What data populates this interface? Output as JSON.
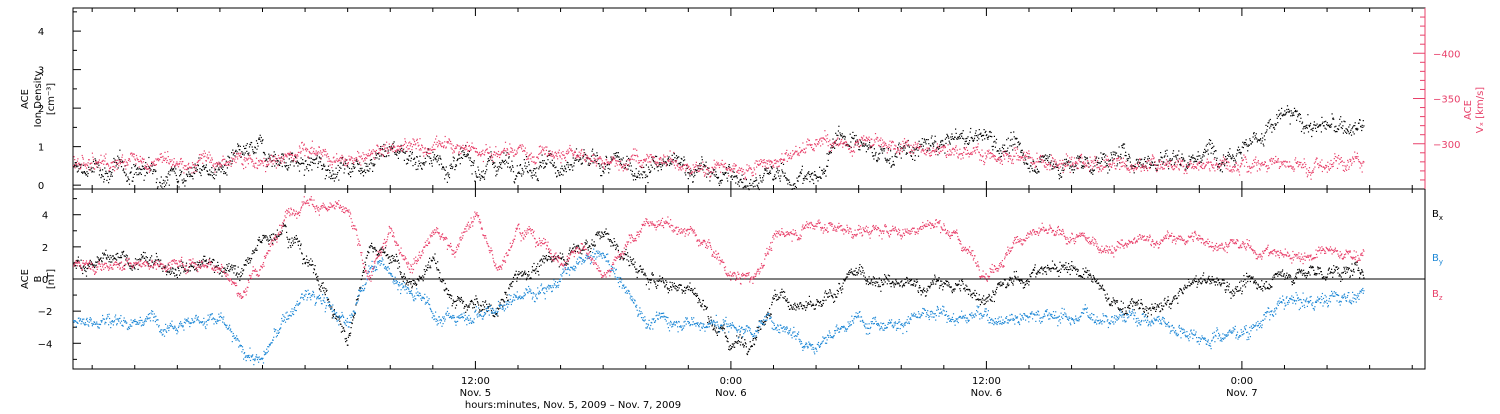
{
  "colors": {
    "black": "#000000",
    "pink": "#e8406a",
    "blue": "#1e88d6",
    "axis": "#000000"
  },
  "chart_data": [
    {
      "type": "scatter",
      "panel": "top",
      "left_axis": {
        "label_lines": [
          "ACE",
          "Ion Density",
          "[cm⁻³]"
        ],
        "ylim": [
          -0.1,
          4.6
        ],
        "ticks": [
          0,
          1,
          2,
          3,
          4
        ],
        "tick_labels": [
          "0",
          "1",
          "2",
          "3",
          "4"
        ],
        "color": "#000000"
      },
      "right_axis": {
        "label_lines": [
          "ACE",
          "Vₓ [km/s]"
        ],
        "ylim": [
          -250,
          -450
        ],
        "ticks": [
          -300,
          -350,
          -400
        ],
        "tick_labels": [
          "−300",
          "−350",
          "−400"
        ],
        "color": "#e8406a"
      },
      "series": [
        {
          "axis": "left",
          "color": "#000000",
          "knots_hours": [
            0,
            2,
            4,
            6,
            8,
            10,
            12,
            14,
            16,
            18,
            20,
            22,
            23.6,
            24,
            26,
            28.2,
            29,
            30,
            32,
            34,
            36,
            38,
            40,
            42,
            44,
            46,
            48,
            48.9,
            49.5,
            50,
            51,
            52,
            54
          ],
          "knots_values": [
            0.4,
            0.9,
            0.5,
            0.5,
            1.0,
            0.6,
            0.5,
            0.7,
            0.5,
            0.5,
            0.5,
            0.5,
            0.2,
            0.2,
            0.2,
            0.2,
            1.5,
            0.9,
            0.8,
            1.1,
            1.3,
            0.7,
            0.5,
            0.7,
            0.7,
            0.8,
            1.1,
            1.3,
            1.6,
            1.8,
            1.6,
            1.5,
            1.5
          ],
          "scatter": 0.35
        },
        {
          "axis": "right",
          "color": "#e8406a",
          "knots_hours": [
            0,
            2,
            4,
            6,
            8,
            10,
            12,
            14,
            16,
            18,
            20,
            22,
            24,
            26,
            27,
            28.3,
            29,
            30,
            32,
            34,
            36,
            38,
            40,
            42,
            44,
            46,
            48,
            50,
            52,
            53.7
          ],
          "knots_values": [
            -280,
            -280,
            -290,
            -285,
            -295,
            -297,
            -292,
            -290,
            -285,
            -282,
            -278,
            -278,
            -272,
            -275,
            -290,
            -305,
            -298,
            -300,
            -297,
            -290,
            -286,
            -284,
            -279,
            -277,
            -274,
            -276,
            -275,
            -276,
            -276,
            -276
          ],
          "scatter": 12
        }
      ]
    },
    {
      "type": "scatter",
      "panel": "bottom",
      "left_axis": {
        "label_lines": [
          "ACE",
          "B",
          "[nT]"
        ],
        "ylim": [
          -5.6,
          5.6
        ],
        "ticks": [
          -4,
          -2,
          0,
          2,
          4
        ],
        "tick_labels": [
          "−4",
          "−2",
          "0",
          "2",
          "4"
        ],
        "color": "#000000"
      },
      "zero_line": true,
      "series": [
        {
          "name": "Bx",
          "label_main": "B",
          "label_sub": "x",
          "color": "#000000",
          "knots_hours": [
            0,
            1,
            2,
            3,
            4,
            5,
            6,
            7,
            8,
            9,
            10,
            11,
            12,
            13,
            14,
            15,
            16,
            17,
            18,
            20,
            22,
            24,
            25,
            26,
            27,
            28,
            30,
            32,
            34,
            36,
            38,
            40,
            42,
            44,
            46,
            48,
            50,
            52,
            54
          ],
          "knots_values": [
            1.0,
            0.3,
            2.5,
            3.5,
            1.5,
            -1.0,
            -4.0,
            2.5,
            1.5,
            -0.5,
            1.0,
            -1.5,
            -1.5,
            -2.0,
            0.3,
            0.8,
            1.5,
            2.0,
            3.0,
            0.0,
            -0.5,
            -4.0,
            -3.5,
            -1.0,
            -1.5,
            -2.0,
            0.5,
            -0.5,
            -0.3,
            -1.0,
            0.3,
            1.0,
            -1.5,
            -2.0,
            0.0,
            -0.5,
            0.3,
            0.5,
            0.4
          ],
          "scatter": 0.6
        },
        {
          "name": "By",
          "label_main": "B",
          "label_sub": "y",
          "color": "#1e88d6",
          "knots_hours": [
            0,
            1,
            2,
            3,
            4,
            5,
            6,
            7,
            8,
            9,
            10,
            11,
            12,
            13,
            14,
            15,
            16,
            17,
            18,
            20,
            22,
            24,
            25,
            26,
            28,
            30,
            32,
            34,
            36,
            38,
            40,
            42,
            44,
            46,
            48,
            50,
            52,
            54
          ],
          "knots_values": [
            -2.5,
            -4.5,
            -5.0,
            -2.5,
            -1.0,
            -1.5,
            -3.0,
            1.0,
            0.5,
            -1.0,
            -2.0,
            -2.5,
            -2.0,
            -2.0,
            -1.0,
            -0.5,
            0.0,
            1.0,
            1.5,
            -2.5,
            -2.5,
            -3.0,
            -3.0,
            -2.5,
            -4.0,
            -2.5,
            -2.5,
            -2.3,
            -2.3,
            -2.2,
            -2.3,
            -2.2,
            -2.5,
            -3.5,
            -3.3,
            -1.5,
            -1.2,
            -0.8
          ],
          "scatter": 0.6
        },
        {
          "name": "Bz",
          "label_main": "B",
          "label_sub": "z",
          "color": "#e8406a",
          "knots_hours": [
            0,
            1,
            2,
            3,
            4,
            5,
            6,
            7,
            8,
            9,
            10,
            11,
            12,
            13,
            14,
            15,
            16,
            17,
            18,
            20,
            22,
            23,
            24,
            25,
            26,
            28,
            30,
            32,
            34,
            36,
            38,
            40,
            42,
            44,
            46,
            48,
            50,
            52,
            54
          ],
          "knots_values": [
            1.0,
            -1.0,
            1.0,
            4.0,
            5.0,
            4.5,
            4.0,
            0.0,
            3.0,
            1.0,
            3.0,
            2.0,
            4.0,
            0.5,
            3.5,
            2.5,
            1.0,
            2.0,
            0.5,
            3.5,
            3.0,
            2.0,
            0.2,
            0.0,
            2.5,
            3.5,
            3.0,
            3.0,
            3.5,
            0.5,
            3.0,
            2.5,
            2.0,
            2.5,
            2.5,
            2.0,
            1.5,
            1.6,
            1.6
          ],
          "scatter": 0.5
        }
      ]
    }
  ],
  "time_axis": {
    "hours_range": [
      -6.9,
      56.6
    ],
    "label_hours": [
      12,
      24,
      36,
      48
    ],
    "labels_top": [
      "12:00",
      "0:00",
      "12:00",
      "0:00"
    ],
    "labels_bottom": [
      "Nov. 5",
      "Nov. 6",
      "Nov. 6",
      "Nov. 7"
    ],
    "minor_step_hours": 2,
    "data_end_hours": 53.7,
    "xlabel": "hours:minutes, Nov.  5, 2009 – Nov.  7, 2009"
  }
}
